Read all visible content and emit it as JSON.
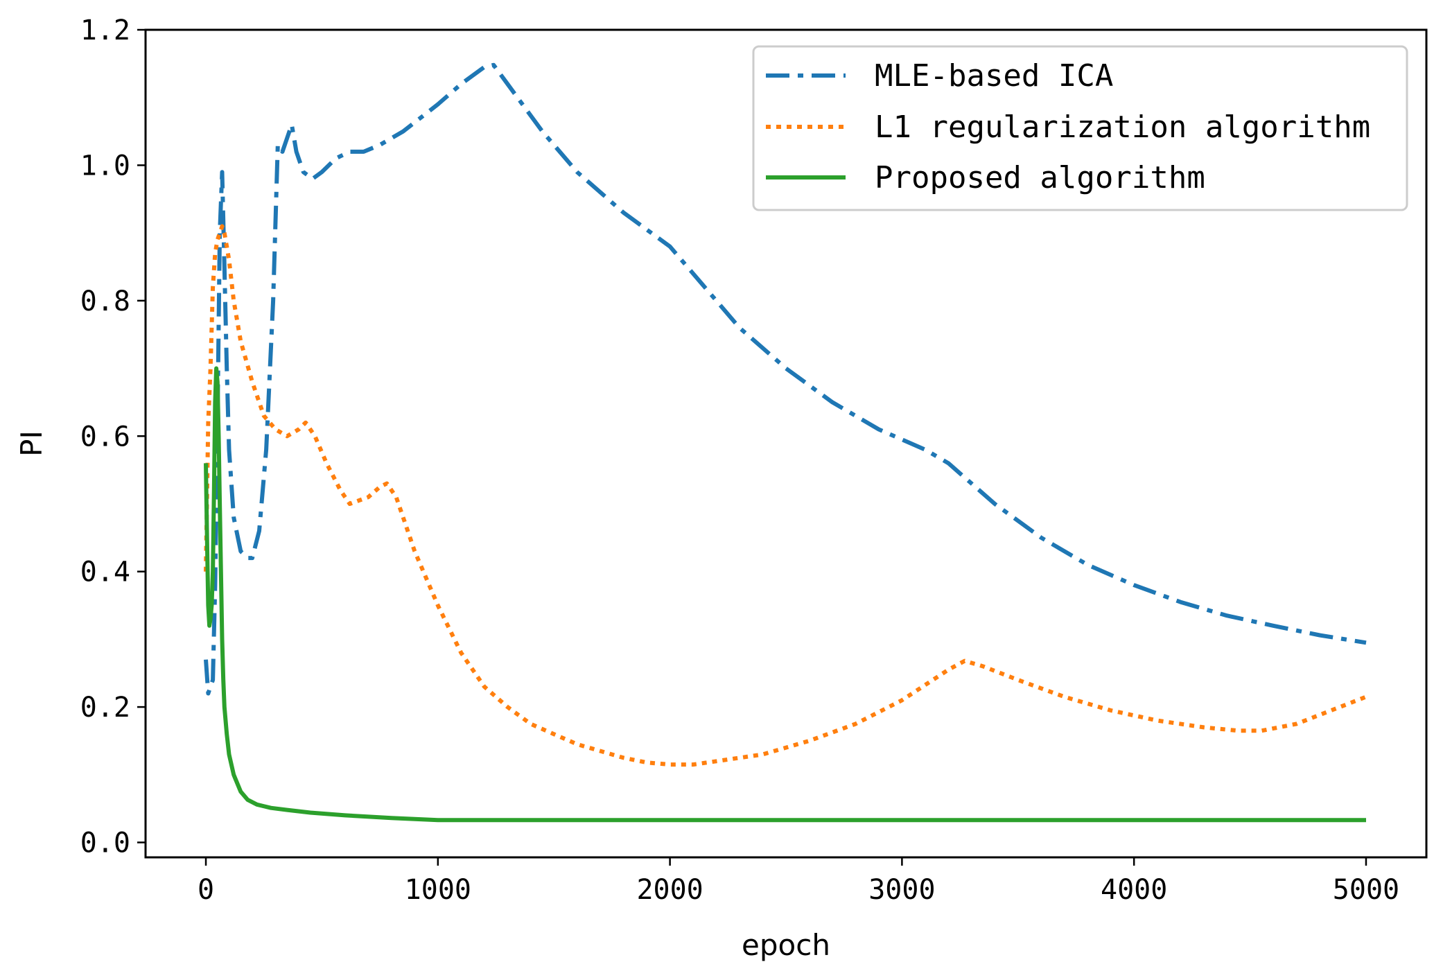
{
  "chart_data": {
    "type": "line",
    "title": "",
    "xlabel": "epoch",
    "ylabel": "PI",
    "xlim": [
      -260,
      5260
    ],
    "ylim": [
      -0.022,
      1.2
    ],
    "x_ticks": [
      0,
      1000,
      2000,
      3000,
      4000,
      5000
    ],
    "x_tick_labels": [
      "0",
      "1000",
      "2000",
      "3000",
      "4000",
      "5000"
    ],
    "y_ticks": [
      0.0,
      0.2,
      0.4,
      0.6,
      0.8,
      1.0,
      1.2
    ],
    "y_tick_labels": [
      "0.0",
      "0.2",
      "0.4",
      "0.6",
      "0.8",
      "1.0",
      "1.2"
    ],
    "grid": false,
    "legend_position": "top-right",
    "series": [
      {
        "name": "MLE-based ICA",
        "color": "#1f77b4",
        "style": "dashdot",
        "x": [
          0,
          10,
          20,
          30,
          40,
          50,
          60,
          70,
          80,
          90,
          100,
          120,
          150,
          180,
          200,
          230,
          260,
          290,
          310,
          330,
          350,
          370,
          390,
          420,
          460,
          500,
          560,
          620,
          680,
          750,
          850,
          1000,
          1100,
          1200,
          1240,
          1300,
          1450,
          1600,
          1800,
          2000,
          2100,
          2300,
          2500,
          2700,
          2900,
          3100,
          3200,
          3400,
          3600,
          3800,
          4000,
          4200,
          4400,
          4600,
          4800,
          5000
        ],
        "y": [
          0.27,
          0.22,
          0.23,
          0.24,
          0.38,
          0.62,
          0.9,
          0.99,
          0.85,
          0.7,
          0.58,
          0.48,
          0.43,
          0.42,
          0.42,
          0.46,
          0.58,
          0.8,
          1.03,
          1.02,
          1.04,
          1.06,
          1.02,
          0.99,
          0.98,
          0.99,
          1.01,
          1.02,
          1.02,
          1.03,
          1.05,
          1.09,
          1.12,
          1.145,
          1.148,
          1.12,
          1.05,
          0.99,
          0.93,
          0.88,
          0.84,
          0.76,
          0.7,
          0.65,
          0.61,
          0.58,
          0.56,
          0.5,
          0.45,
          0.41,
          0.38,
          0.355,
          0.335,
          0.32,
          0.306,
          0.295
        ]
      },
      {
        "name": "L1 regularization algorithm",
        "color": "#ff7f0e",
        "style": "dotted",
        "x": [
          0,
          10,
          20,
          30,
          40,
          50,
          60,
          70,
          80,
          90,
          100,
          120,
          150,
          200,
          250,
          300,
          350,
          400,
          430,
          470,
          520,
          580,
          620,
          660,
          700,
          750,
          780,
          820,
          860,
          900,
          1000,
          1100,
          1200,
          1300,
          1400,
          1500,
          1600,
          1700,
          1800,
          1900,
          2000,
          2100,
          2200,
          2400,
          2600,
          2800,
          3000,
          3200,
          3270,
          3350,
          3500,
          3700,
          3900,
          4100,
          4300,
          4450,
          4550,
          4700,
          4850,
          5000
        ],
        "y": [
          0.4,
          0.62,
          0.7,
          0.82,
          0.87,
          0.89,
          0.9,
          0.91,
          0.9,
          0.88,
          0.86,
          0.8,
          0.74,
          0.68,
          0.63,
          0.61,
          0.6,
          0.61,
          0.62,
          0.6,
          0.56,
          0.52,
          0.5,
          0.505,
          0.51,
          0.525,
          0.53,
          0.51,
          0.47,
          0.43,
          0.35,
          0.28,
          0.23,
          0.2,
          0.175,
          0.16,
          0.145,
          0.135,
          0.125,
          0.118,
          0.115,
          0.115,
          0.12,
          0.13,
          0.15,
          0.175,
          0.21,
          0.255,
          0.268,
          0.26,
          0.24,
          0.215,
          0.195,
          0.18,
          0.17,
          0.165,
          0.165,
          0.175,
          0.195,
          0.215
        ]
      },
      {
        "name": "Proposed algorithm",
        "color": "#2ca02c",
        "style": "solid",
        "x": [
          0,
          5,
          10,
          15,
          20,
          25,
          30,
          35,
          40,
          45,
          50,
          55,
          60,
          65,
          70,
          75,
          80,
          90,
          100,
          120,
          150,
          180,
          220,
          280,
          350,
          450,
          600,
          800,
          1000,
          1500,
          2000,
          2500,
          3000,
          3500,
          4000,
          4500,
          5000
        ],
        "y": [
          0.56,
          0.45,
          0.35,
          0.32,
          0.33,
          0.35,
          0.4,
          0.52,
          0.65,
          0.7,
          0.68,
          0.6,
          0.5,
          0.4,
          0.3,
          0.24,
          0.2,
          0.16,
          0.13,
          0.1,
          0.075,
          0.063,
          0.056,
          0.051,
          0.048,
          0.044,
          0.04,
          0.036,
          0.033,
          0.033,
          0.033,
          0.033,
          0.033,
          0.033,
          0.033,
          0.033,
          0.033
        ]
      }
    ]
  }
}
